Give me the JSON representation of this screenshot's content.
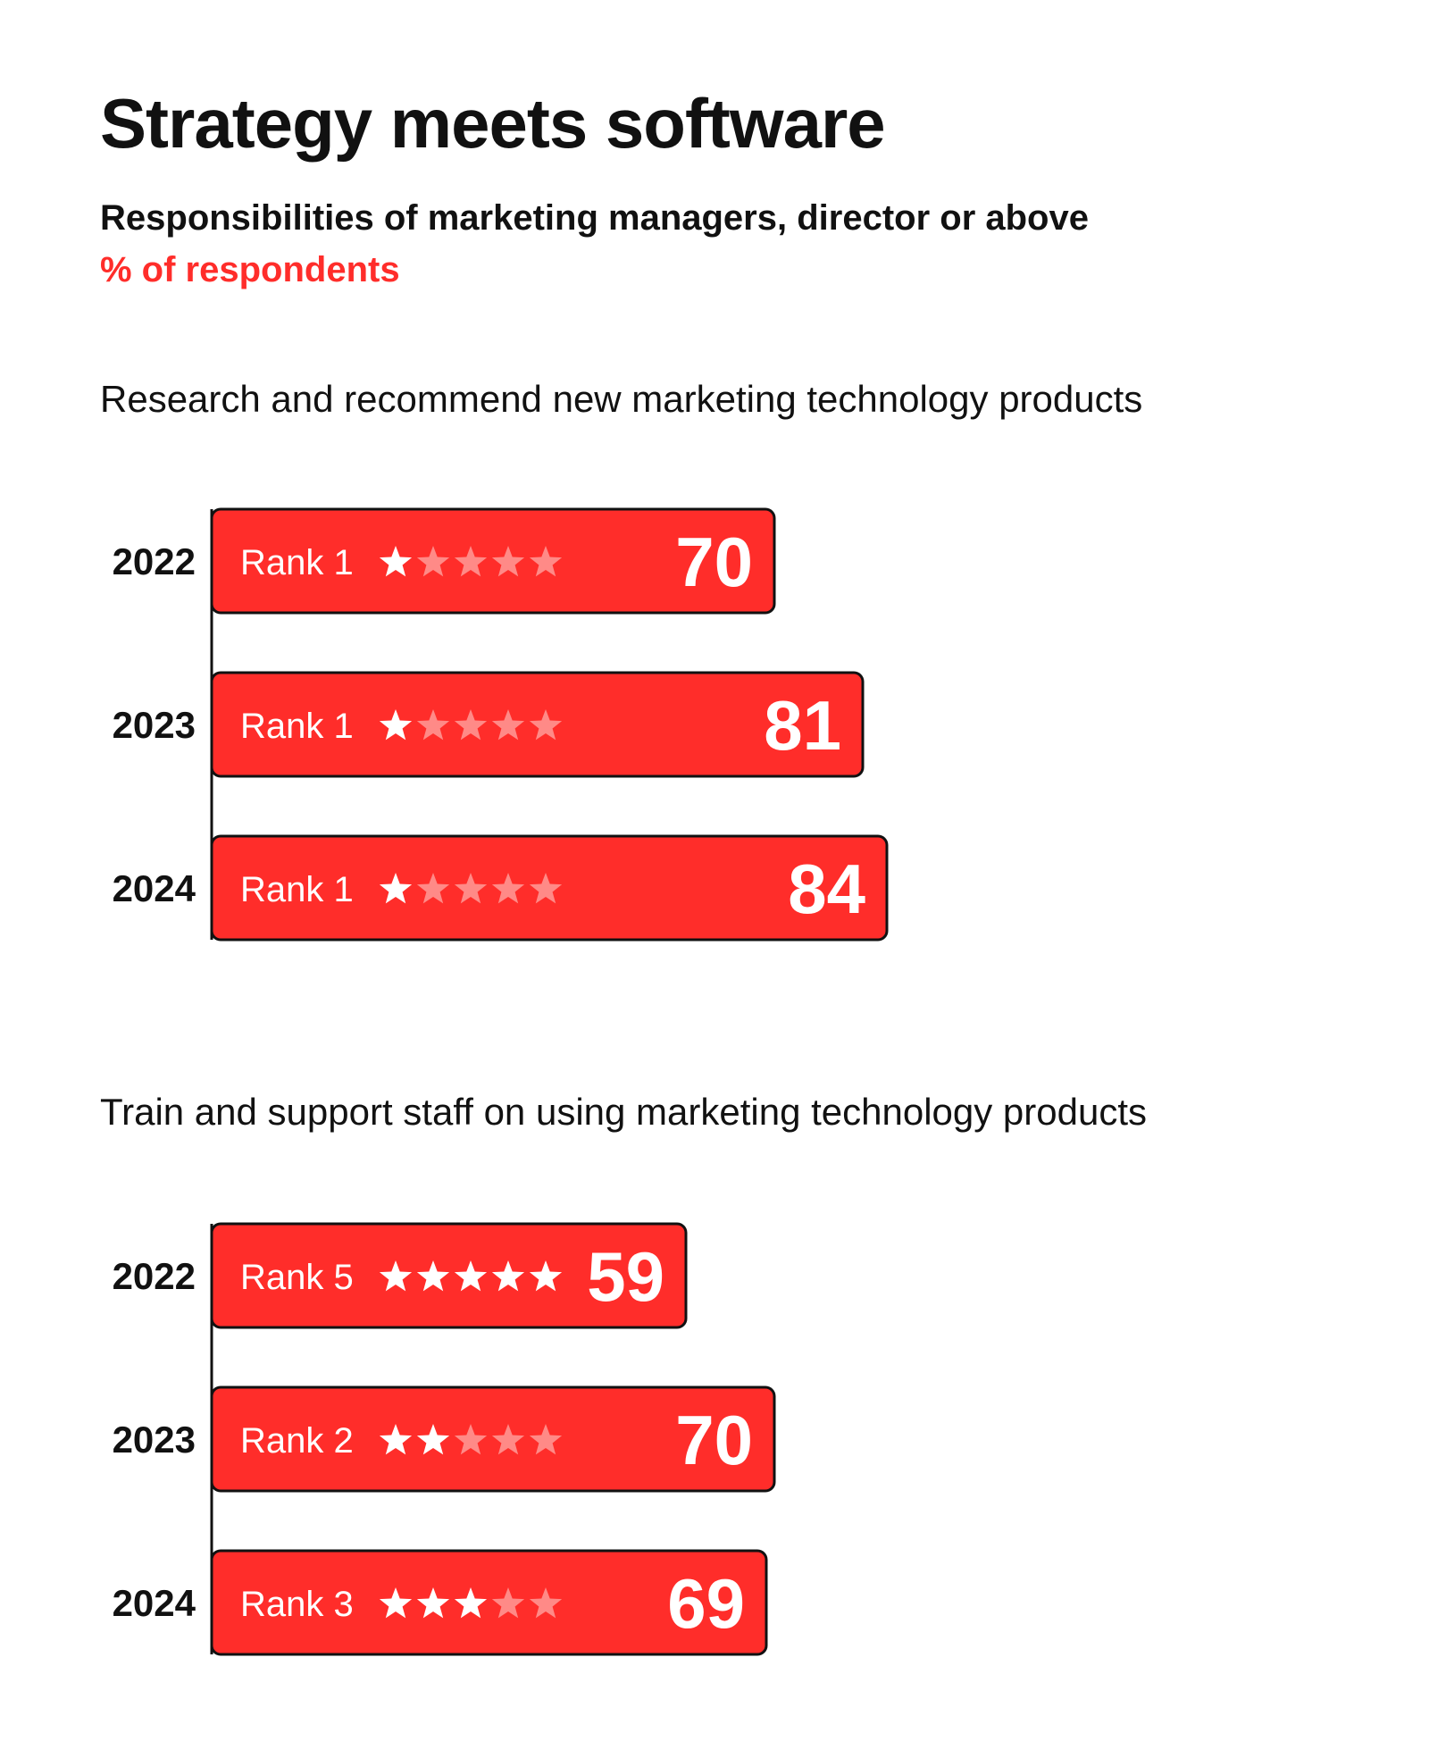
{
  "header": {
    "title": "Strategy meets software",
    "subtitle": "Responsibilities of marketing managers, director or above",
    "unit": "% of respondents"
  },
  "colors": {
    "bar": "#ff2d2a",
    "bar_outline": "#111111",
    "star_filled": "#ffffff",
    "star_empty": "#ff8a87",
    "text": "#111111",
    "accent": "#ff2d2a"
  },
  "chart_data": [
    {
      "type": "bar",
      "title": "Research and recommend new marketing technology products",
      "categories": [
        "2022",
        "2023",
        "2024"
      ],
      "values": [
        70,
        81,
        84
      ],
      "ranks": [
        1,
        1,
        1
      ],
      "rank_labels": [
        "Rank 1",
        "Rank 1",
        "Rank 1"
      ],
      "stars_total": 5,
      "xlim": [
        0,
        100
      ]
    },
    {
      "type": "bar",
      "title": "Train and support staff on using marketing technology products",
      "categories": [
        "2022",
        "2023",
        "2024"
      ],
      "values": [
        59,
        70,
        69
      ],
      "ranks": [
        5,
        2,
        3
      ],
      "rank_labels": [
        "Rank 5",
        "Rank 2",
        "Rank 3"
      ],
      "stars_total": 5,
      "xlim": [
        0,
        100
      ]
    }
  ]
}
